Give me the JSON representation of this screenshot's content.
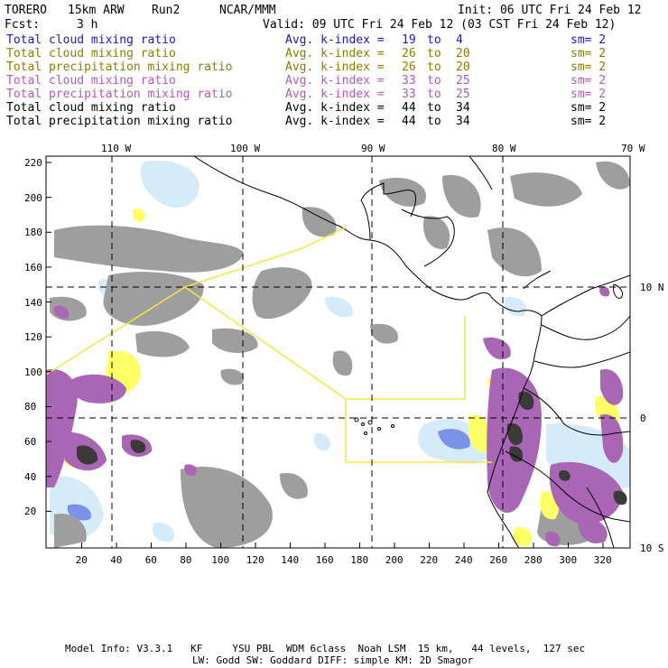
{
  "header": {
    "model": "TORERO",
    "resolution": "15km ARW",
    "run": "Run2",
    "org": "NCAR/MMM",
    "init": "Init: 06 UTC Fri 24 Feb 12",
    "fcst_label": "Fcst:",
    "fcst_value": "3 h",
    "valid": "Valid: 09 UTC Fri 24 Feb 12 (03 CST Fri 24 Feb 12)"
  },
  "legend": {
    "rows": [
      {
        "field": "Total cloud mixing ratio",
        "kindex": "Avg. k-index =",
        "from": "19",
        "to_word": "to",
        "to": "4",
        "sm": "sm= 2",
        "color": "#1a1acc"
      },
      {
        "field": "Total cloud mixing ratio",
        "kindex": "Avg. k-index =",
        "from": "26",
        "to_word": "to",
        "to": "20",
        "sm": "sm= 2",
        "color": "#8a7d00"
      },
      {
        "field": "Total precipitation mixing ratio",
        "kindex": "Avg. k-index =",
        "from": "26",
        "to_word": "to",
        "to": "20",
        "sm": "sm= 2",
        "color": "#8a7d00"
      },
      {
        "field": "Total cloud mixing ratio",
        "kindex": "Avg. k-index =",
        "from": "33",
        "to_word": "to",
        "to": "25",
        "sm": "sm= 2",
        "color": "#b25ab5"
      },
      {
        "field": "Total precipitation mixing ratio",
        "kindex": "Avg. k-index =",
        "from": "33",
        "to_word": "to",
        "to": "25",
        "sm": "sm= 2",
        "color": "#b25ab5"
      },
      {
        "field": "Total cloud mixing ratio",
        "kindex": "Avg. k-index =",
        "from": "44",
        "to_word": "to",
        "to": "34",
        "sm": "sm= 2",
        "color": "#000000"
      },
      {
        "field": "Total precipitation mixing ratio",
        "kindex": "Avg. k-index =",
        "from": "44",
        "to_word": "to",
        "to": "34",
        "sm": "sm= 2",
        "color": "#000000"
      }
    ]
  },
  "map": {
    "lon_labels": [
      "110 W",
      "100 W",
      "90 W",
      "80 W",
      "70 W"
    ],
    "lat_labels": [
      "10 N",
      "0",
      "10 S"
    ],
    "y_ticks": [
      "220",
      "200",
      "180",
      "160",
      "140",
      "120",
      "100",
      "80",
      "60",
      "40",
      "20"
    ],
    "x_ticks": [
      "20",
      "40",
      "60",
      "80",
      "100",
      "120",
      "140",
      "160",
      "180",
      "200",
      "220",
      "240",
      "260",
      "280",
      "300",
      "320"
    ],
    "colors": {
      "gray_cloud": "#9a9a9a",
      "light_blue": "#cfe6f7",
      "blue": "#6a82e0",
      "yellow": "#ffff66",
      "purple": "#a866b5",
      "dark": "#333333",
      "domain_box": "#f5e642",
      "coast": "#000000"
    }
  },
  "footer": {
    "line1": "Model Info: V3.3.1   KF     YSU PBL  WDM 6class  Noah LSM  15 km,   44 levels,  127 sec",
    "line2": "LW: Godd SW: Goddard DIFF: simple KM: 2D Smagor"
  }
}
